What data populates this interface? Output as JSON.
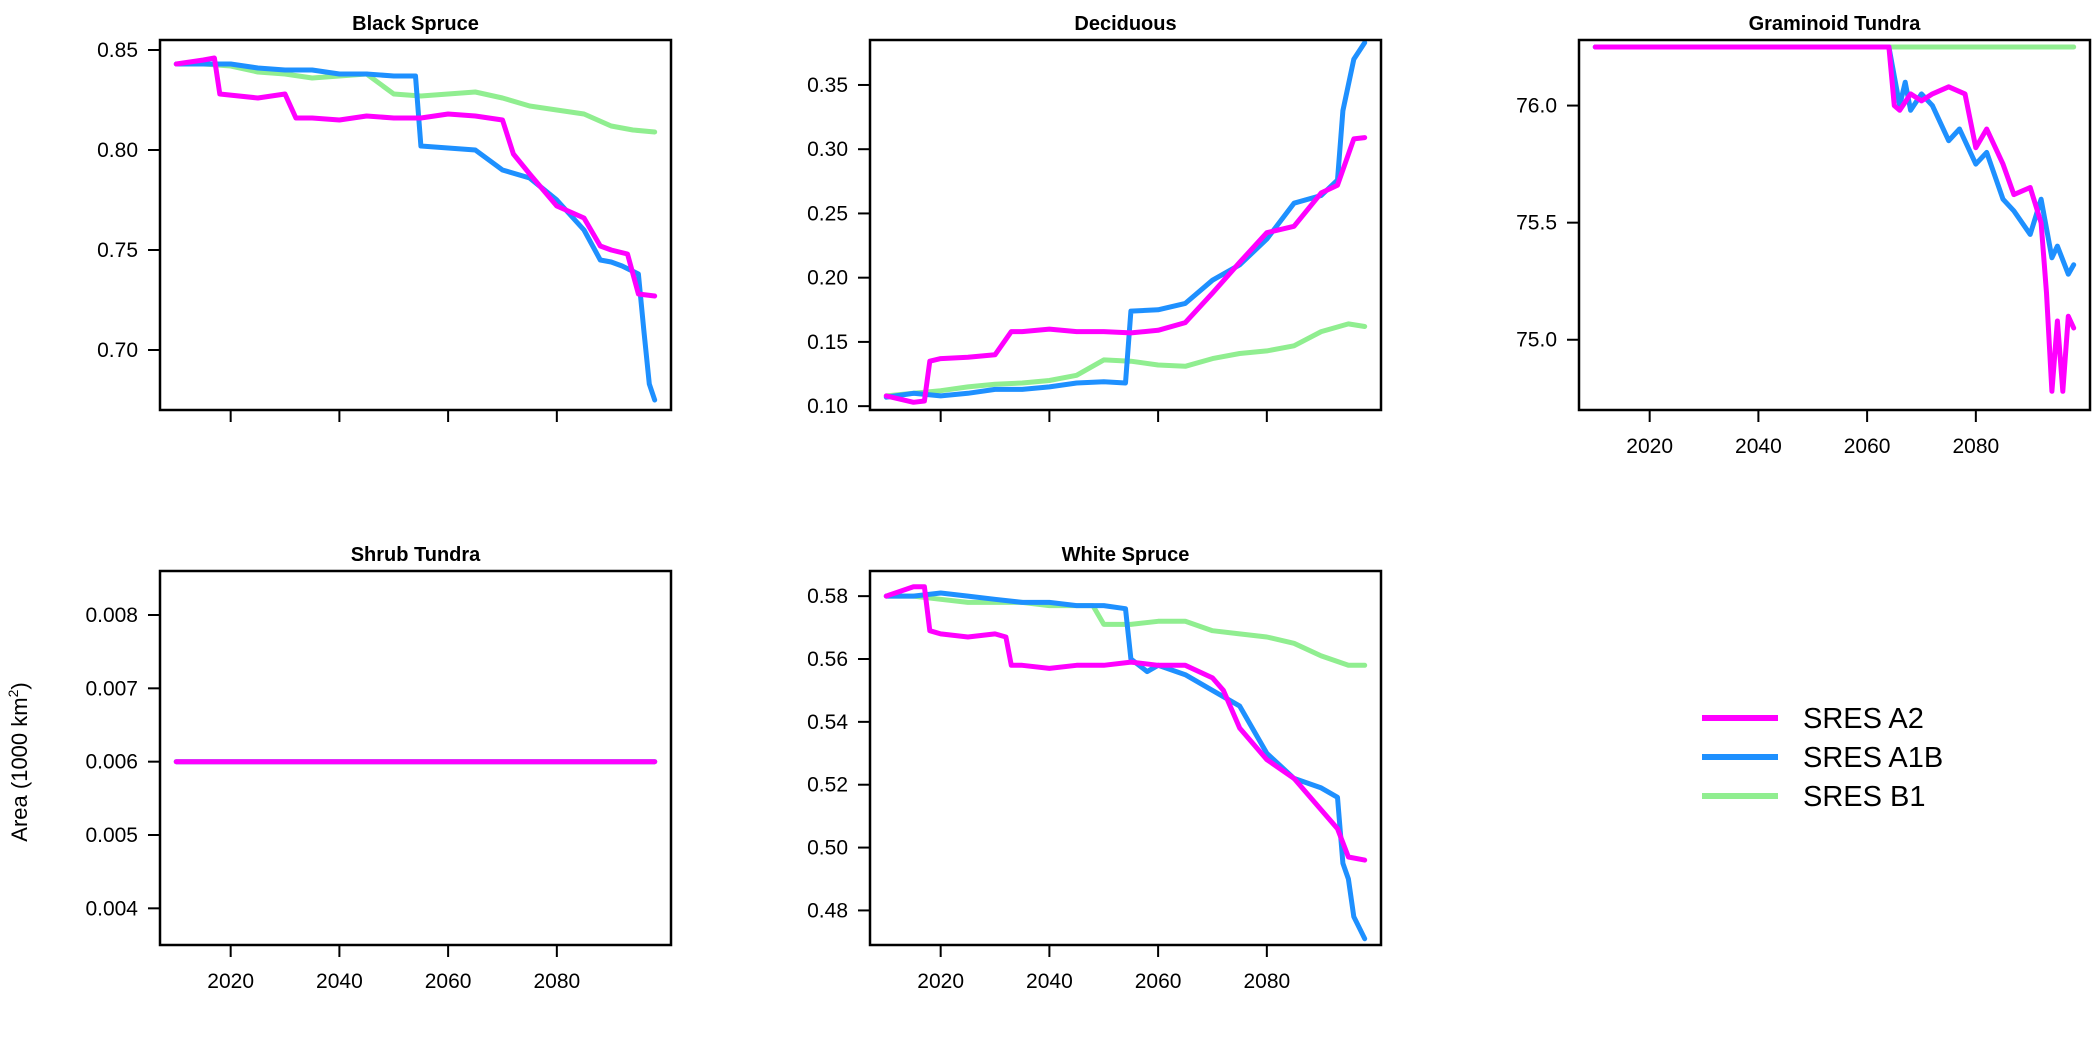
{
  "ylabel": "Area (1000 km",
  "ylabel_sup": "2",
  "ylabel_close": ")",
  "legend": [
    {
      "label": "SRES A2",
      "color": "#ff00ff"
    },
    {
      "label": "SRES A1B",
      "color": "#1e90ff"
    },
    {
      "label": "SRES B1",
      "color": "#90ee90"
    }
  ],
  "chart_data": [
    {
      "type": "line",
      "title": "Black Spruce",
      "xlim": [
        2007,
        2101
      ],
      "ylim": [
        0.67,
        0.855
      ],
      "xticks": [
        2020,
        2040,
        2060,
        2080
      ],
      "xtick_labels": [],
      "yticks": [
        0.7,
        0.75,
        0.8,
        0.85
      ],
      "ytick_labels": [
        "0.70",
        "0.75",
        "0.80",
        "0.85"
      ],
      "grid": false,
      "series": [
        {
          "name": "SRES B1",
          "color": "#90ee90",
          "x": [
            2010,
            2015,
            2020,
            2025,
            2030,
            2035,
            2040,
            2045,
            2050,
            2055,
            2060,
            2065,
            2070,
            2075,
            2080,
            2085,
            2090,
            2094,
            2098
          ],
          "y": [
            0.843,
            0.843,
            0.842,
            0.839,
            0.838,
            0.836,
            0.837,
            0.838,
            0.828,
            0.827,
            0.828,
            0.829,
            0.826,
            0.822,
            0.82,
            0.818,
            0.812,
            0.81,
            0.809
          ]
        },
        {
          "name": "SRES A1B",
          "color": "#1e90ff",
          "x": [
            2010,
            2015,
            2020,
            2025,
            2030,
            2035,
            2040,
            2045,
            2050,
            2054,
            2055,
            2060,
            2065,
            2070,
            2075,
            2080,
            2085,
            2088,
            2090,
            2092,
            2095,
            2096,
            2097,
            2098
          ],
          "y": [
            0.843,
            0.843,
            0.843,
            0.841,
            0.84,
            0.84,
            0.838,
            0.838,
            0.837,
            0.837,
            0.802,
            0.801,
            0.8,
            0.79,
            0.786,
            0.775,
            0.76,
            0.745,
            0.744,
            0.742,
            0.738,
            0.71,
            0.683,
            0.675
          ]
        },
        {
          "name": "SRES A2",
          "color": "#ff00ff",
          "x": [
            2010,
            2015,
            2017,
            2018,
            2025,
            2030,
            2032,
            2035,
            2040,
            2045,
            2050,
            2055,
            2060,
            2065,
            2070,
            2072,
            2075,
            2080,
            2085,
            2088,
            2090,
            2093,
            2095,
            2098
          ],
          "y": [
            0.843,
            0.845,
            0.846,
            0.828,
            0.826,
            0.828,
            0.816,
            0.816,
            0.815,
            0.817,
            0.816,
            0.816,
            0.818,
            0.817,
            0.815,
            0.798,
            0.788,
            0.772,
            0.766,
            0.752,
            0.75,
            0.748,
            0.728,
            0.727
          ]
        }
      ]
    },
    {
      "type": "line",
      "title": "Deciduous",
      "xlim": [
        2007,
        2101
      ],
      "ylim": [
        0.097,
        0.385
      ],
      "xticks": [
        2020,
        2040,
        2060,
        2080
      ],
      "xtick_labels": [],
      "yticks": [
        0.1,
        0.15,
        0.2,
        0.25,
        0.3,
        0.35
      ],
      "ytick_labels": [
        "0.10",
        "0.15",
        "0.20",
        "0.25",
        "0.30",
        "0.35"
      ],
      "grid": false,
      "series": [
        {
          "name": "SRES B1",
          "color": "#90ee90",
          "x": [
            2010,
            2015,
            2020,
            2025,
            2030,
            2035,
            2040,
            2045,
            2050,
            2055,
            2060,
            2065,
            2070,
            2075,
            2080,
            2085,
            2090,
            2095,
            2098
          ],
          "y": [
            0.108,
            0.11,
            0.112,
            0.115,
            0.117,
            0.118,
            0.12,
            0.124,
            0.136,
            0.135,
            0.132,
            0.131,
            0.137,
            0.141,
            0.143,
            0.147,
            0.158,
            0.164,
            0.162
          ]
        },
        {
          "name": "SRES A1B",
          "color": "#1e90ff",
          "x": [
            2010,
            2015,
            2020,
            2025,
            2030,
            2035,
            2040,
            2045,
            2050,
            2054,
            2055,
            2060,
            2065,
            2070,
            2075,
            2080,
            2085,
            2090,
            2093,
            2094,
            2096,
            2098
          ],
          "y": [
            0.107,
            0.11,
            0.108,
            0.11,
            0.113,
            0.113,
            0.115,
            0.118,
            0.119,
            0.118,
            0.174,
            0.175,
            0.18,
            0.198,
            0.21,
            0.23,
            0.258,
            0.264,
            0.276,
            0.33,
            0.37,
            0.383
          ]
        },
        {
          "name": "SRES A2",
          "color": "#ff00ff",
          "x": [
            2010,
            2015,
            2017,
            2018,
            2020,
            2025,
            2030,
            2033,
            2035,
            2040,
            2045,
            2050,
            2055,
            2060,
            2065,
            2070,
            2075,
            2080,
            2085,
            2090,
            2093,
            2096,
            2098
          ],
          "y": [
            0.108,
            0.103,
            0.104,
            0.135,
            0.137,
            0.138,
            0.14,
            0.158,
            0.158,
            0.16,
            0.158,
            0.158,
            0.157,
            0.159,
            0.165,
            0.188,
            0.212,
            0.235,
            0.24,
            0.266,
            0.272,
            0.308,
            0.309
          ]
        }
      ]
    },
    {
      "type": "line",
      "title": "Graminoid Tundra",
      "xlim": [
        2007,
        2101
      ],
      "ylim": [
        74.7,
        76.28
      ],
      "xticks": [
        2020,
        2040,
        2060,
        2080
      ],
      "xtick_labels": [
        "2020",
        "2040",
        "2060",
        "2080"
      ],
      "yticks": [
        75.0,
        75.5,
        76.0
      ],
      "ytick_labels": [
        "75.0",
        "75.5",
        "76.0"
      ],
      "grid": false,
      "series": [
        {
          "name": "SRES B1",
          "color": "#90ee90",
          "x": [
            2010,
            2098
          ],
          "y": [
            76.25,
            76.25
          ]
        },
        {
          "name": "SRES A1B",
          "color": "#1e90ff",
          "x": [
            2010,
            2064,
            2066,
            2067,
            2068,
            2070,
            2072,
            2075,
            2077,
            2080,
            2082,
            2085,
            2087,
            2090,
            2092,
            2094,
            2095,
            2097,
            2098
          ],
          "y": [
            76.25,
            76.25,
            76.0,
            76.1,
            75.98,
            76.05,
            76.0,
            75.85,
            75.9,
            75.75,
            75.8,
            75.6,
            75.55,
            75.45,
            75.6,
            75.35,
            75.4,
            75.28,
            75.32
          ]
        },
        {
          "name": "SRES A2",
          "color": "#ff00ff",
          "x": [
            2010,
            2064,
            2065,
            2066,
            2068,
            2070,
            2072,
            2075,
            2078,
            2080,
            2082,
            2085,
            2087,
            2090,
            2092,
            2093,
            2094,
            2095,
            2096,
            2097,
            2098
          ],
          "y": [
            76.25,
            76.25,
            76.0,
            75.98,
            76.05,
            76.02,
            76.05,
            76.08,
            76.05,
            75.82,
            75.9,
            75.75,
            75.62,
            75.65,
            75.5,
            75.2,
            74.78,
            75.08,
            74.78,
            75.1,
            75.05
          ]
        }
      ]
    },
    {
      "type": "line",
      "title": "Shrub Tundra",
      "xlim": [
        2007,
        2101
      ],
      "ylim": [
        0.0035,
        0.0086
      ],
      "xticks": [
        2020,
        2040,
        2060,
        2080
      ],
      "xtick_labels": [
        "2020",
        "2040",
        "2060",
        "2080"
      ],
      "yticks": [
        0.004,
        0.005,
        0.006,
        0.007,
        0.008
      ],
      "ytick_labels": [
        "0.004",
        "0.005",
        "0.006",
        "0.007",
        "0.008"
      ],
      "grid": false,
      "series": [
        {
          "name": "SRES B1",
          "color": "#90ee90",
          "x": [
            2010,
            2098
          ],
          "y": [
            0.006,
            0.006
          ]
        },
        {
          "name": "SRES A1B",
          "color": "#1e90ff",
          "x": [
            2010,
            2098
          ],
          "y": [
            0.006,
            0.006
          ]
        },
        {
          "name": "SRES A2",
          "color": "#ff00ff",
          "x": [
            2010,
            2098
          ],
          "y": [
            0.006,
            0.006
          ]
        }
      ]
    },
    {
      "type": "line",
      "title": "White Spruce",
      "xlim": [
        2007,
        2101
      ],
      "ylim": [
        0.469,
        0.588
      ],
      "xticks": [
        2020,
        2040,
        2060,
        2080
      ],
      "xtick_labels": [
        "2020",
        "2040",
        "2060",
        "2080"
      ],
      "yticks": [
        0.48,
        0.5,
        0.52,
        0.54,
        0.56,
        0.58
      ],
      "ytick_labels": [
        "0.48",
        "0.50",
        "0.52",
        "0.54",
        "0.56",
        "0.58"
      ],
      "grid": false,
      "series": [
        {
          "name": "SRES B1",
          "color": "#90ee90",
          "x": [
            2010,
            2015,
            2020,
            2025,
            2030,
            2035,
            2040,
            2045,
            2048,
            2050,
            2055,
            2060,
            2065,
            2070,
            2075,
            2080,
            2085,
            2090,
            2095,
            2098
          ],
          "y": [
            0.58,
            0.58,
            0.579,
            0.578,
            0.578,
            0.578,
            0.577,
            0.577,
            0.577,
            0.571,
            0.571,
            0.572,
            0.572,
            0.569,
            0.568,
            0.567,
            0.565,
            0.561,
            0.558,
            0.558
          ]
        },
        {
          "name": "SRES A1B",
          "color": "#1e90ff",
          "x": [
            2010,
            2015,
            2020,
            2025,
            2030,
            2035,
            2040,
            2045,
            2050,
            2054,
            2055,
            2058,
            2060,
            2065,
            2070,
            2075,
            2080,
            2085,
            2090,
            2093,
            2094,
            2095,
            2096,
            2098
          ],
          "y": [
            0.58,
            0.58,
            0.581,
            0.58,
            0.579,
            0.578,
            0.578,
            0.577,
            0.577,
            0.576,
            0.56,
            0.556,
            0.558,
            0.555,
            0.55,
            0.545,
            0.53,
            0.522,
            0.519,
            0.516,
            0.495,
            0.49,
            0.478,
            0.471
          ]
        },
        {
          "name": "SRES A2",
          "color": "#ff00ff",
          "x": [
            2010,
            2015,
            2017,
            2018,
            2020,
            2025,
            2030,
            2032,
            2033,
            2035,
            2040,
            2045,
            2050,
            2055,
            2060,
            2065,
            2070,
            2072,
            2075,
            2080,
            2085,
            2090,
            2093,
            2095,
            2098
          ],
          "y": [
            0.58,
            0.583,
            0.583,
            0.569,
            0.568,
            0.567,
            0.568,
            0.567,
            0.558,
            0.558,
            0.557,
            0.558,
            0.558,
            0.559,
            0.558,
            0.558,
            0.554,
            0.55,
            0.538,
            0.528,
            0.522,
            0.512,
            0.506,
            0.497,
            0.496
          ]
        }
      ]
    }
  ]
}
